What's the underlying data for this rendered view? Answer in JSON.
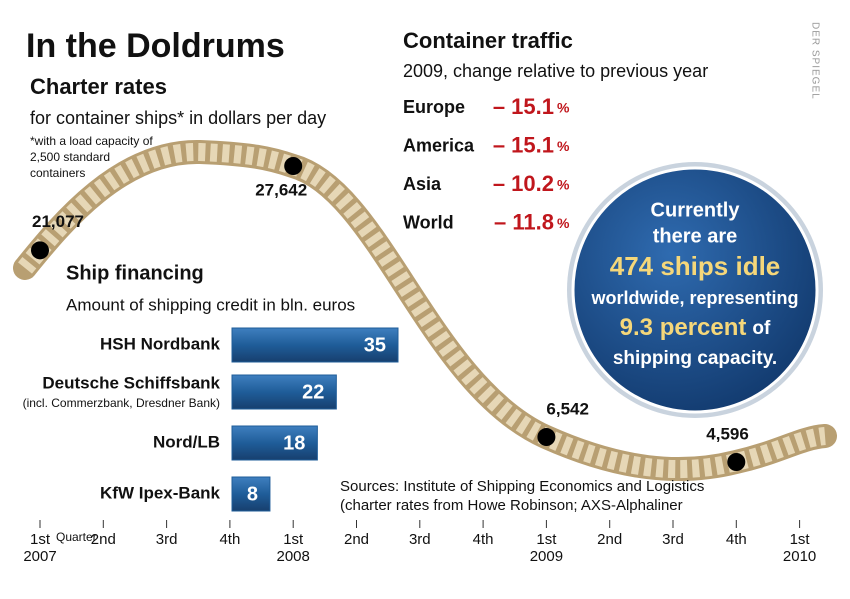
{
  "title": "In the Doldrums",
  "credit": "DER SPIEGEL",
  "chart_data": [
    {
      "type": "line",
      "title": "Charter rates",
      "subtitle": "for container ships* in dollars per day",
      "note": [
        "*with a load capacity of",
        "2,500 standard",
        "containers"
      ],
      "axis_title": "Quarter",
      "categories": [
        "1st",
        "2nd",
        "3rd",
        "4th",
        "1st",
        "2nd",
        "3rd",
        "4th",
        "1st",
        "2nd",
        "3rd",
        "4th",
        "1st"
      ],
      "years": [
        "2007",
        null,
        null,
        null,
        "2008",
        null,
        null,
        null,
        "2009",
        null,
        null,
        null,
        "2010"
      ],
      "values": [
        21077,
        null,
        null,
        null,
        27642,
        null,
        null,
        null,
        6542,
        null,
        null,
        4596,
        null
      ],
      "value_labels": [
        "21,077",
        null,
        null,
        null,
        "27,642",
        null,
        null,
        null,
        "6,542",
        null,
        null,
        "4,596",
        null
      ],
      "color": "#000000"
    },
    {
      "type": "bar",
      "title": "Ship financing",
      "subtitle": "Amount of shipping credit in bln. euros",
      "categories": [
        "HSH Nordbank",
        "Deutsche Schiffsbank",
        "Nord/LB",
        "KfW Ipex-Bank"
      ],
      "category_notes": [
        null,
        "(incl. Commerzbank, Dresdner Bank)",
        null,
        null
      ],
      "values": [
        35,
        22,
        18,
        8
      ],
      "color": "#1f5d99"
    }
  ],
  "container_traffic": {
    "title": "Container traffic",
    "subtitle": "2009, change relative to previous year",
    "unit": "%",
    "rows": [
      {
        "label": "Europe",
        "value": "– 15.1"
      },
      {
        "label": "America",
        "value": "– 15.1"
      },
      {
        "label": "Asia",
        "value": "– 10.2"
      },
      {
        "label": "World",
        "value": "– 11.8"
      }
    ]
  },
  "callout": {
    "lines": [
      "Currently",
      "there are",
      "474 ships idle",
      "worldwide, representing"
    ],
    "highlight": "9.3 percent",
    "after": "of",
    "last": "shipping capacity."
  },
  "sources": [
    "Sources: Institute of Shipping Economics and Logistics",
    "(charter rates from Howe Robinson; AXS-Alphaliner"
  ]
}
